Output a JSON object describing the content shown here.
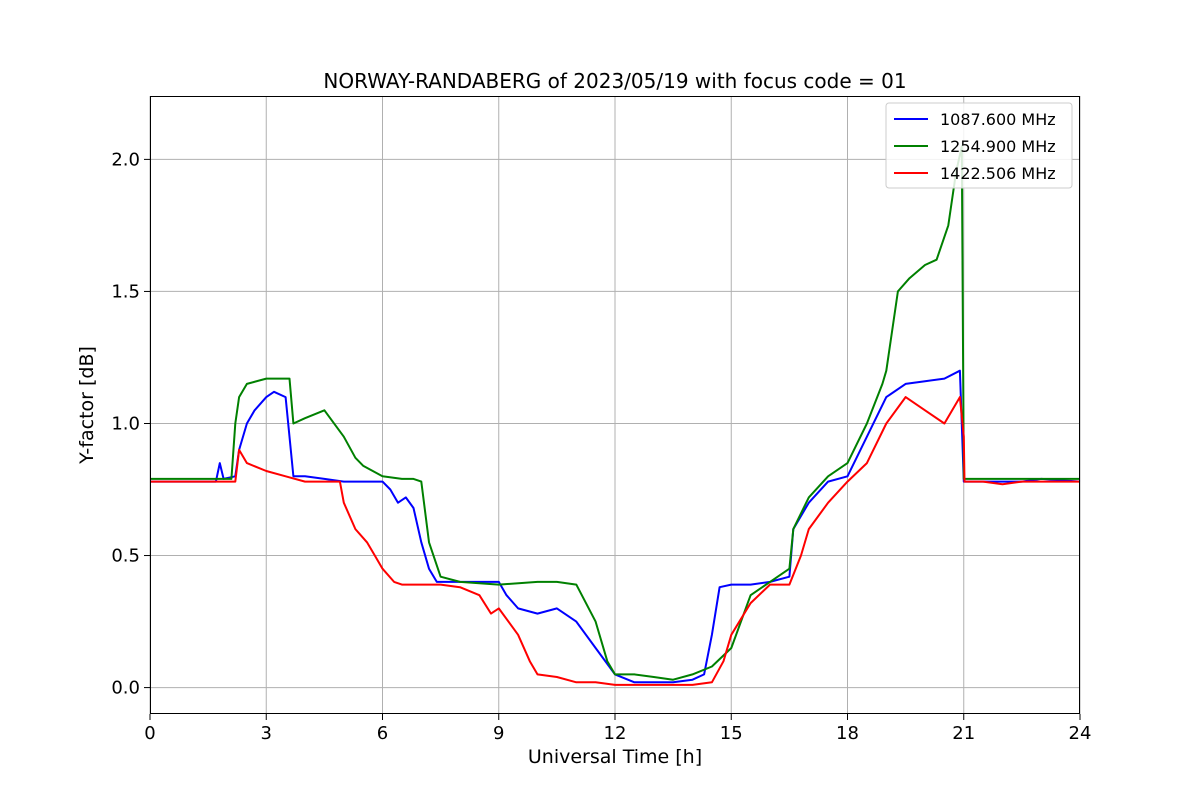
{
  "chart_data": {
    "type": "line",
    "title": "NORWAY-RANDABERG of 2023/05/19 with focus code = 01",
    "xlabel": "Universal Time [h]",
    "ylabel": "Y-factor [dB]",
    "xlim": [
      0,
      24
    ],
    "ylim": [
      -0.1,
      2.24
    ],
    "x_ticks": [
      0,
      3,
      6,
      9,
      12,
      15,
      18,
      21,
      24
    ],
    "x_tick_labels": [
      "0",
      "3",
      "6",
      "9",
      "12",
      "15",
      "18",
      "21",
      "24"
    ],
    "y_ticks": [
      0.0,
      0.5,
      1.0,
      1.5,
      2.0
    ],
    "y_tick_labels": [
      "0.0",
      "0.5",
      "1.0",
      "1.5",
      "2.0"
    ],
    "grid": true,
    "legend_position": "top-right",
    "series": [
      {
        "name": "1087.600 MHz",
        "color": "#0000ff",
        "x": [
          0,
          1.7,
          1.8,
          1.9,
          2.2,
          2.3,
          2.5,
          2.7,
          3.0,
          3.2,
          3.5,
          3.7,
          4.0,
          4.5,
          5.0,
          5.5,
          6.0,
          6.2,
          6.4,
          6.6,
          6.8,
          7.0,
          7.2,
          7.4,
          8.0,
          9.0,
          9.2,
          9.5,
          10.0,
          10.5,
          11.0,
          11.5,
          12.0,
          12.5,
          13.0,
          13.5,
          14.0,
          14.3,
          14.5,
          14.7,
          15.0,
          15.5,
          16.0,
          16.5,
          16.6,
          17.0,
          17.5,
          18.0,
          18.5,
          19.0,
          19.5,
          20.0,
          20.5,
          20.9,
          21.0,
          21.5,
          22.0,
          22.5,
          23.0,
          24.0
        ],
        "y": [
          0.78,
          0.78,
          0.85,
          0.79,
          0.8,
          0.9,
          1.0,
          1.05,
          1.1,
          1.12,
          1.1,
          0.8,
          0.8,
          0.79,
          0.78,
          0.78,
          0.78,
          0.75,
          0.7,
          0.72,
          0.68,
          0.55,
          0.45,
          0.4,
          0.4,
          0.4,
          0.35,
          0.3,
          0.28,
          0.3,
          0.25,
          0.15,
          0.05,
          0.02,
          0.02,
          0.02,
          0.03,
          0.05,
          0.2,
          0.38,
          0.39,
          0.39,
          0.4,
          0.42,
          0.6,
          0.7,
          0.78,
          0.8,
          0.95,
          1.1,
          1.15,
          1.16,
          1.17,
          1.2,
          0.78,
          0.78,
          0.78,
          0.78,
          0.79,
          0.78
        ]
      },
      {
        "name": "1254.900 MHz",
        "color": "#008000",
        "x": [
          0,
          2.1,
          2.2,
          2.3,
          2.5,
          3.0,
          3.3,
          3.6,
          3.7,
          4.0,
          4.5,
          5.0,
          5.3,
          5.5,
          6.0,
          6.5,
          6.8,
          7.0,
          7.2,
          7.5,
          8.0,
          9.0,
          10.0,
          10.5,
          11.0,
          11.5,
          11.8,
          12.0,
          12.5,
          13.0,
          13.5,
          14.0,
          14.5,
          15.0,
          15.5,
          16.0,
          16.5,
          16.6,
          17.0,
          17.5,
          18.0,
          18.5,
          18.9,
          19.0,
          19.3,
          19.6,
          20.0,
          20.3,
          20.6,
          20.8,
          20.95,
          21.0,
          21.5,
          22.0,
          23.0,
          24.0
        ],
        "y": [
          0.79,
          0.79,
          1.0,
          1.1,
          1.15,
          1.17,
          1.17,
          1.17,
          1.0,
          1.02,
          1.05,
          0.95,
          0.87,
          0.84,
          0.8,
          0.79,
          0.79,
          0.78,
          0.55,
          0.42,
          0.4,
          0.39,
          0.4,
          0.4,
          0.39,
          0.25,
          0.1,
          0.05,
          0.05,
          0.04,
          0.03,
          0.05,
          0.08,
          0.15,
          0.35,
          0.4,
          0.45,
          0.6,
          0.72,
          0.8,
          0.85,
          1.0,
          1.15,
          1.2,
          1.5,
          1.55,
          1.6,
          1.62,
          1.75,
          1.95,
          2.05,
          0.79,
          0.79,
          0.79,
          0.79,
          0.79
        ]
      },
      {
        "name": "1422.506 MHz",
        "color": "#ff0000",
        "x": [
          0,
          2.2,
          2.3,
          2.5,
          3.0,
          3.5,
          4.0,
          4.5,
          4.9,
          5.0,
          5.3,
          5.6,
          5.8,
          6.0,
          6.3,
          6.5,
          7.0,
          7.5,
          8.0,
          8.5,
          8.8,
          9.0,
          9.5,
          9.8,
          10.0,
          10.5,
          11.0,
          11.5,
          12.0,
          12.5,
          13.0,
          14.0,
          14.5,
          14.8,
          15.0,
          15.5,
          16.0,
          16.5,
          16.8,
          17.0,
          17.5,
          18.0,
          18.5,
          19.0,
          19.5,
          20.0,
          20.5,
          20.9,
          21.0,
          21.02,
          21.5,
          22.0,
          22.5,
          23.0,
          24.0
        ],
        "y": [
          0.78,
          0.78,
          0.9,
          0.85,
          0.82,
          0.8,
          0.78,
          0.78,
          0.78,
          0.7,
          0.6,
          0.55,
          0.5,
          0.45,
          0.4,
          0.39,
          0.39,
          0.39,
          0.38,
          0.35,
          0.28,
          0.3,
          0.2,
          0.1,
          0.05,
          0.04,
          0.02,
          0.02,
          0.01,
          0.01,
          0.01,
          0.01,
          0.02,
          0.1,
          0.2,
          0.32,
          0.39,
          0.39,
          0.5,
          0.6,
          0.7,
          0.78,
          0.85,
          1.0,
          1.1,
          1.05,
          1.0,
          1.1,
          0.95,
          0.78,
          0.78,
          0.77,
          0.78,
          0.78,
          0.78
        ]
      }
    ]
  }
}
